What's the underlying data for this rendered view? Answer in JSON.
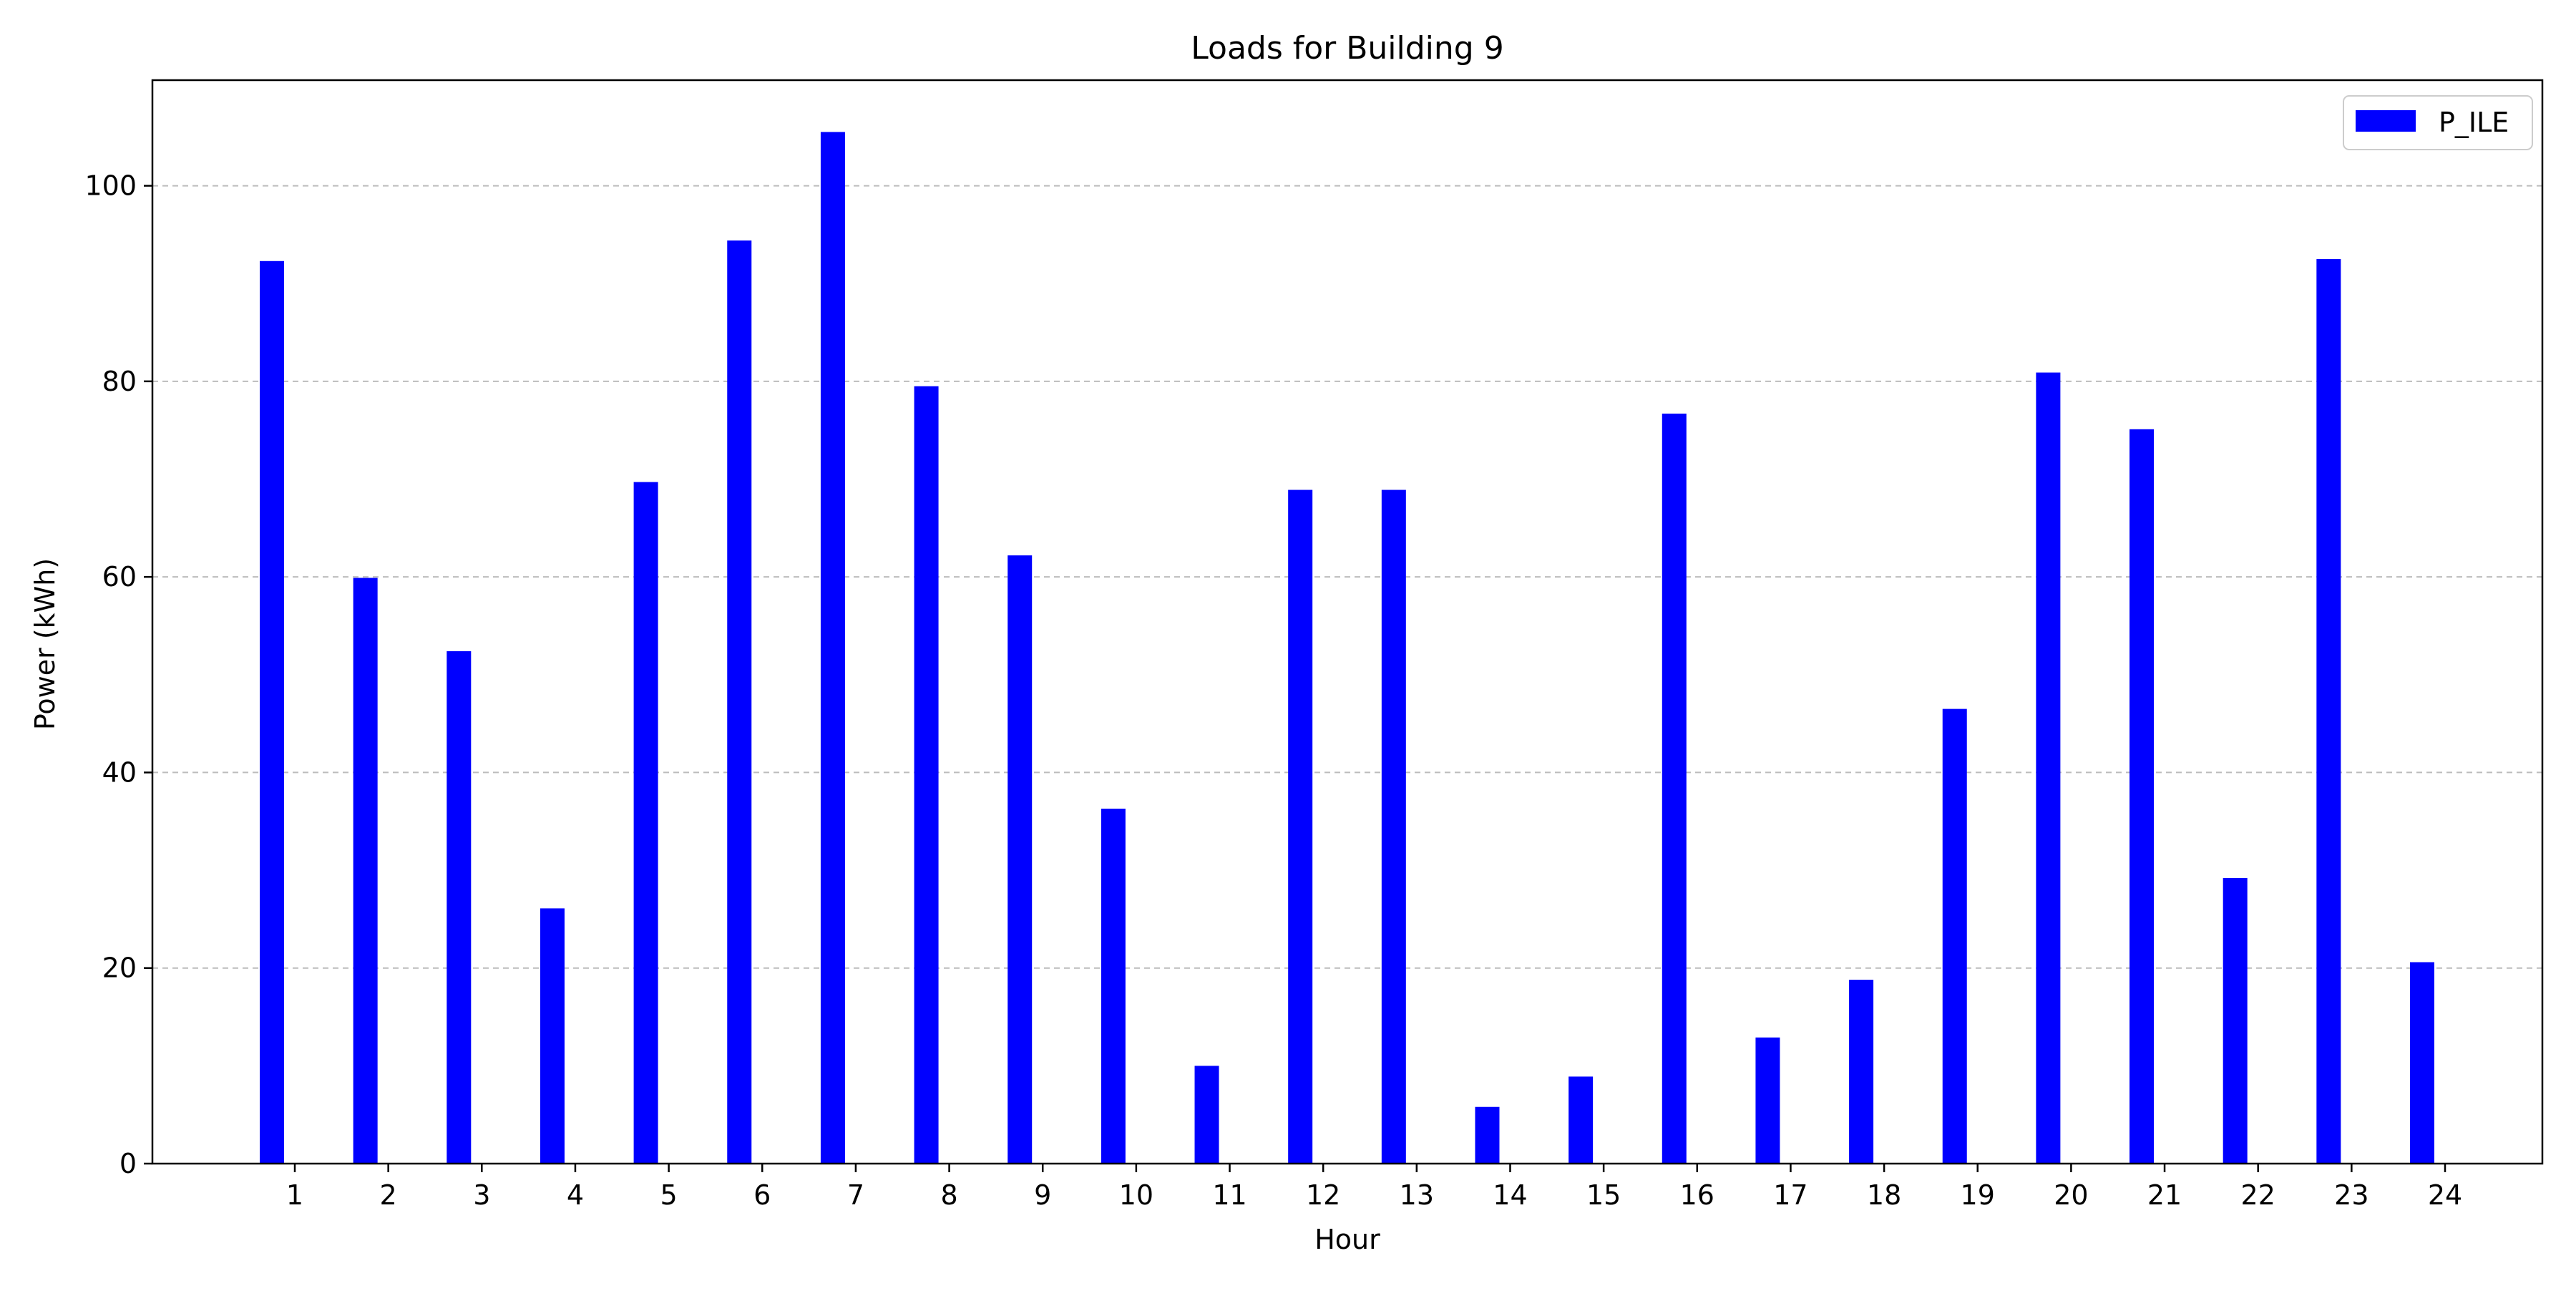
{
  "chart_data": {
    "type": "bar",
    "title": "Loads for Building 9",
    "xlabel": "Hour",
    "ylabel": "Power (kWh)",
    "categories": [
      "1",
      "2",
      "3",
      "4",
      "5",
      "6",
      "7",
      "8",
      "9",
      "10",
      "11",
      "12",
      "13",
      "14",
      "15",
      "16",
      "17",
      "18",
      "19",
      "20",
      "21",
      "22",
      "23",
      "24"
    ],
    "series": [
      {
        "name": "P_ILE",
        "color": "#0000ff",
        "values": [
          92.3,
          59.9,
          52.4,
          26.1,
          69.7,
          94.4,
          105.5,
          79.5,
          62.2,
          36.3,
          10.0,
          68.9,
          68.9,
          5.8,
          8.9,
          76.7,
          12.9,
          18.8,
          46.5,
          80.9,
          75.1,
          29.2,
          92.5,
          20.6
        ]
      }
    ],
    "ylim": [
      0,
      110.8
    ],
    "yticks": [
      0,
      20,
      40,
      60,
      80,
      100
    ],
    "grid": "y-dashed",
    "legend_position": "top-right"
  }
}
